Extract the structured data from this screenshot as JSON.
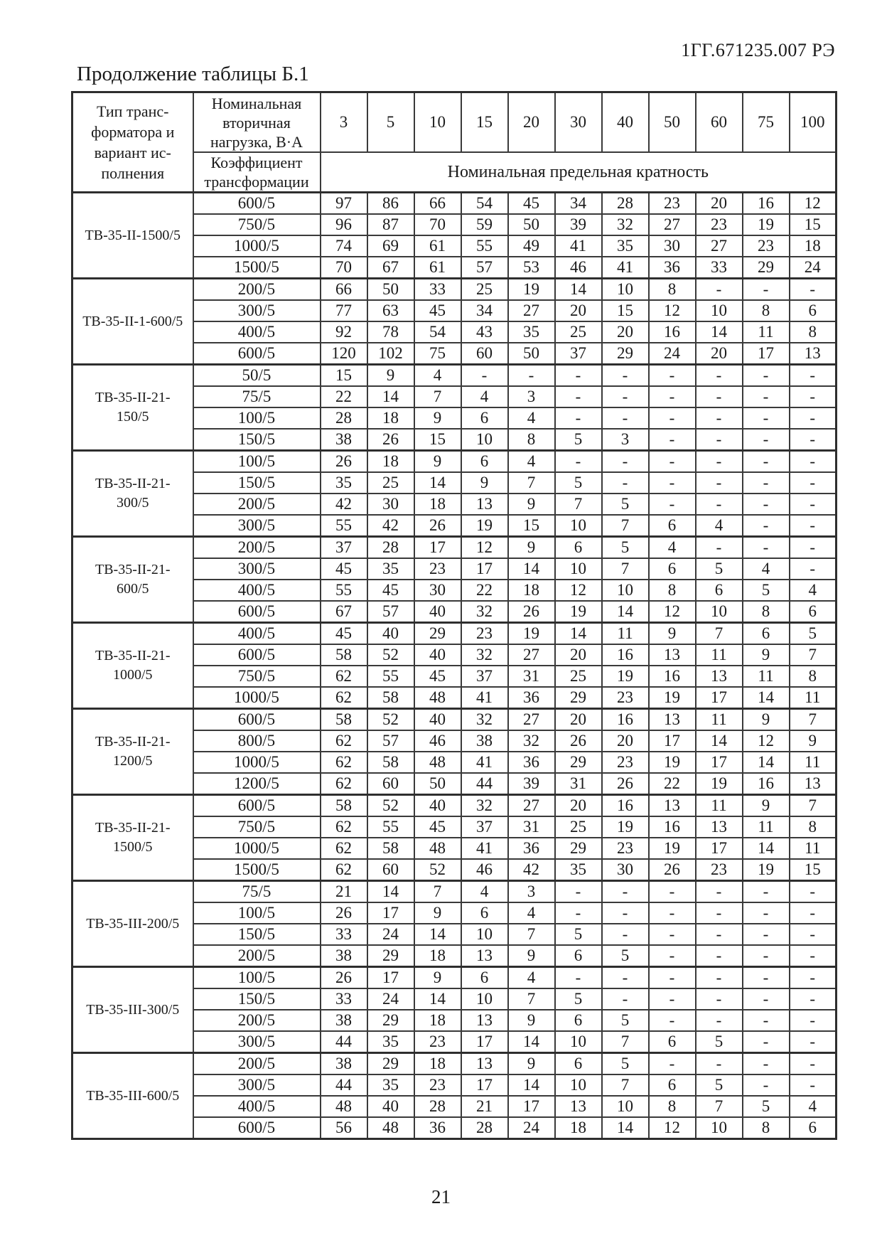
{
  "page": {
    "doc_number": "1ГГ.671235.007 РЭ",
    "caption": "Продолжение таблицы Б.1",
    "page_number": "21"
  },
  "table": {
    "col1_header": "Тип транс-\nформатора и\nвариант ис-\nполнения",
    "col2_header_top": "Номинальная\nвторичная\nнагрузка, В·А",
    "col2_header_bottom": "Коэффициент\nтрансформации",
    "loads": [
      "3",
      "5",
      "10",
      "15",
      "20",
      "30",
      "40",
      "50",
      "60",
      "75",
      "100"
    ],
    "span_header": "Номинальная предельная кратность",
    "blocks": [
      {
        "type": "ТВ-35-II-1500/5",
        "rows": [
          {
            "ratio": "600/5",
            "values": [
              "97",
              "86",
              "66",
              "54",
              "45",
              "34",
              "28",
              "23",
              "20",
              "16",
              "12"
            ]
          },
          {
            "ratio": "750/5",
            "values": [
              "96",
              "87",
              "70",
              "59",
              "50",
              "39",
              "32",
              "27",
              "23",
              "19",
              "15"
            ]
          },
          {
            "ratio": "1000/5",
            "values": [
              "74",
              "69",
              "61",
              "55",
              "49",
              "41",
              "35",
              "30",
              "27",
              "23",
              "18"
            ]
          },
          {
            "ratio": "1500/5",
            "values": [
              "70",
              "67",
              "61",
              "57",
              "53",
              "46",
              "41",
              "36",
              "33",
              "29",
              "24"
            ]
          }
        ]
      },
      {
        "type": "ТВ-35-II-1-600/5",
        "rows": [
          {
            "ratio": "200/5",
            "values": [
              "66",
              "50",
              "33",
              "25",
              "19",
              "14",
              "10",
              "8",
              "-",
              "-",
              "-"
            ]
          },
          {
            "ratio": "300/5",
            "values": [
              "77",
              "63",
              "45",
              "34",
              "27",
              "20",
              "15",
              "12",
              "10",
              "8",
              "6"
            ]
          },
          {
            "ratio": "400/5",
            "values": [
              "92",
              "78",
              "54",
              "43",
              "35",
              "25",
              "20",
              "16",
              "14",
              "11",
              "8"
            ]
          },
          {
            "ratio": "600/5",
            "values": [
              "120",
              "102",
              "75",
              "60",
              "50",
              "37",
              "29",
              "24",
              "20",
              "17",
              "13"
            ]
          }
        ]
      },
      {
        "type": "ТВ-35-II-21-\n150/5",
        "rows": [
          {
            "ratio": "50/5",
            "values": [
              "15",
              "9",
              "4",
              "-",
              "-",
              "-",
              "-",
              "-",
              "-",
              "-",
              "-"
            ]
          },
          {
            "ratio": "75/5",
            "values": [
              "22",
              "14",
              "7",
              "4",
              "3",
              "-",
              "-",
              "-",
              "-",
              "-",
              "-"
            ]
          },
          {
            "ratio": "100/5",
            "values": [
              "28",
              "18",
              "9",
              "6",
              "4",
              "-",
              "-",
              "-",
              "-",
              "-",
              "-"
            ]
          },
          {
            "ratio": "150/5",
            "values": [
              "38",
              "26",
              "15",
              "10",
              "8",
              "5",
              "3",
              "-",
              "-",
              "-",
              "-"
            ]
          }
        ]
      },
      {
        "type": "ТВ-35-II-21-\n300/5",
        "rows": [
          {
            "ratio": "100/5",
            "values": [
              "26",
              "18",
              "9",
              "6",
              "4",
              "-",
              "-",
              "-",
              "-",
              "-",
              "-"
            ]
          },
          {
            "ratio": "150/5",
            "values": [
              "35",
              "25",
              "14",
              "9",
              "7",
              "5",
              "-",
              "-",
              "-",
              "-",
              "-"
            ]
          },
          {
            "ratio": "200/5",
            "values": [
              "42",
              "30",
              "18",
              "13",
              "9",
              "7",
              "5",
              "-",
              "-",
              "-",
              "-"
            ]
          },
          {
            "ratio": "300/5",
            "values": [
              "55",
              "42",
              "26",
              "19",
              "15",
              "10",
              "7",
              "6",
              "4",
              "-",
              "-"
            ]
          }
        ]
      },
      {
        "type": "ТВ-35-II-21-\n600/5",
        "rows": [
          {
            "ratio": "200/5",
            "values": [
              "37",
              "28",
              "17",
              "12",
              "9",
              "6",
              "5",
              "4",
              "-",
              "-",
              "-"
            ]
          },
          {
            "ratio": "300/5",
            "values": [
              "45",
              "35",
              "23",
              "17",
              "14",
              "10",
              "7",
              "6",
              "5",
              "4",
              "-"
            ]
          },
          {
            "ratio": "400/5",
            "values": [
              "55",
              "45",
              "30",
              "22",
              "18",
              "12",
              "10",
              "8",
              "6",
              "5",
              "4"
            ]
          },
          {
            "ratio": "600/5",
            "values": [
              "67",
              "57",
              "40",
              "32",
              "26",
              "19",
              "14",
              "12",
              "10",
              "8",
              "6"
            ]
          }
        ]
      },
      {
        "type": "ТВ-35-II-21-\n1000/5",
        "rows": [
          {
            "ratio": "400/5",
            "values": [
              "45",
              "40",
              "29",
              "23",
              "19",
              "14",
              "11",
              "9",
              "7",
              "6",
              "5"
            ]
          },
          {
            "ratio": "600/5",
            "values": [
              "58",
              "52",
              "40",
              "32",
              "27",
              "20",
              "16",
              "13",
              "11",
              "9",
              "7"
            ]
          },
          {
            "ratio": "750/5",
            "values": [
              "62",
              "55",
              "45",
              "37",
              "31",
              "25",
              "19",
              "16",
              "13",
              "11",
              "8"
            ]
          },
          {
            "ratio": "1000/5",
            "values": [
              "62",
              "58",
              "48",
              "41",
              "36",
              "29",
              "23",
              "19",
              "17",
              "14",
              "11"
            ]
          }
        ]
      },
      {
        "type": "ТВ-35-II-21-\n1200/5",
        "rows": [
          {
            "ratio": "600/5",
            "values": [
              "58",
              "52",
              "40",
              "32",
              "27",
              "20",
              "16",
              "13",
              "11",
              "9",
              "7"
            ]
          },
          {
            "ratio": "800/5",
            "values": [
              "62",
              "57",
              "46",
              "38",
              "32",
              "26",
              "20",
              "17",
              "14",
              "12",
              "9"
            ]
          },
          {
            "ratio": "1000/5",
            "values": [
              "62",
              "58",
              "48",
              "41",
              "36",
              "29",
              "23",
              "19",
              "17",
              "14",
              "11"
            ]
          },
          {
            "ratio": "1200/5",
            "values": [
              "62",
              "60",
              "50",
              "44",
              "39",
              "31",
              "26",
              "22",
              "19",
              "16",
              "13"
            ]
          }
        ]
      },
      {
        "type": "ТВ-35-II-21-\n1500/5",
        "rows": [
          {
            "ratio": "600/5",
            "values": [
              "58",
              "52",
              "40",
              "32",
              "27",
              "20",
              "16",
              "13",
              "11",
              "9",
              "7"
            ]
          },
          {
            "ratio": "750/5",
            "values": [
              "62",
              "55",
              "45",
              "37",
              "31",
              "25",
              "19",
              "16",
              "13",
              "11",
              "8"
            ]
          },
          {
            "ratio": "1000/5",
            "values": [
              "62",
              "58",
              "48",
              "41",
              "36",
              "29",
              "23",
              "19",
              "17",
              "14",
              "11"
            ]
          },
          {
            "ratio": "1500/5",
            "values": [
              "62",
              "60",
              "52",
              "46",
              "42",
              "35",
              "30",
              "26",
              "23",
              "19",
              "15"
            ]
          }
        ]
      },
      {
        "type": "ТВ-35-III-200/5",
        "rows": [
          {
            "ratio": "75/5",
            "values": [
              "21",
              "14",
              "7",
              "4",
              "3",
              "-",
              "-",
              "-",
              "-",
              "-",
              "-"
            ]
          },
          {
            "ratio": "100/5",
            "values": [
              "26",
              "17",
              "9",
              "6",
              "4",
              "-",
              "-",
              "-",
              "-",
              "-",
              "-"
            ]
          },
          {
            "ratio": "150/5",
            "values": [
              "33",
              "24",
              "14",
              "10",
              "7",
              "5",
              "-",
              "-",
              "-",
              "-",
              "-"
            ]
          },
          {
            "ratio": "200/5",
            "values": [
              "38",
              "29",
              "18",
              "13",
              "9",
              "6",
              "5",
              "-",
              "-",
              "-",
              "-"
            ]
          }
        ]
      },
      {
        "type": "ТВ-35-III-300/5",
        "rows": [
          {
            "ratio": "100/5",
            "values": [
              "26",
              "17",
              "9",
              "6",
              "4",
              "-",
              "-",
              "-",
              "-",
              "-",
              "-"
            ]
          },
          {
            "ratio": "150/5",
            "values": [
              "33",
              "24",
              "14",
              "10",
              "7",
              "5",
              "-",
              "-",
              "-",
              "-",
              "-"
            ]
          },
          {
            "ratio": "200/5",
            "values": [
              "38",
              "29",
              "18",
              "13",
              "9",
              "6",
              "5",
              "-",
              "-",
              "-",
              "-"
            ]
          },
          {
            "ratio": "300/5",
            "values": [
              "44",
              "35",
              "23",
              "17",
              "14",
              "10",
              "7",
              "6",
              "5",
              "-",
              "-"
            ]
          }
        ]
      },
      {
        "type": "ТВ-35-III-600/5",
        "rows": [
          {
            "ratio": "200/5",
            "values": [
              "38",
              "29",
              "18",
              "13",
              "9",
              "6",
              "5",
              "-",
              "-",
              "-",
              "-"
            ]
          },
          {
            "ratio": "300/5",
            "values": [
              "44",
              "35",
              "23",
              "17",
              "14",
              "10",
              "7",
              "6",
              "5",
              "-",
              "-"
            ]
          },
          {
            "ratio": "400/5",
            "values": [
              "48",
              "40",
              "28",
              "21",
              "17",
              "13",
              "10",
              "8",
              "7",
              "5",
              "4"
            ]
          },
          {
            "ratio": "600/5",
            "values": [
              "56",
              "48",
              "36",
              "28",
              "24",
              "18",
              "14",
              "12",
              "10",
              "8",
              "6"
            ]
          }
        ]
      }
    ]
  }
}
